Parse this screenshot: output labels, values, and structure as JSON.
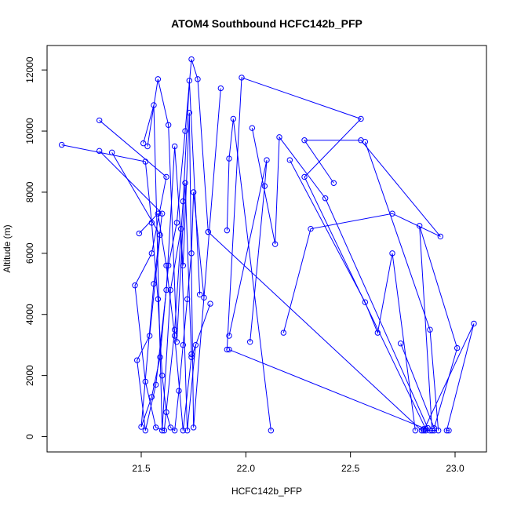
{
  "chart_data": {
    "type": "line",
    "title": "ATOM4 Southbound HCFC142b_PFP",
    "xlabel": "HCFC142b_PFP",
    "ylabel": "Altitude (m)",
    "xlim": [
      21.05,
      23.15
    ],
    "ylim": [
      -500,
      12800
    ],
    "x_ticks": [
      21.5,
      22.0,
      22.5,
      23.0
    ],
    "x_tick_labels": [
      "21.5",
      "22.0",
      "22.5",
      "23.0"
    ],
    "y_ticks": [
      0,
      2000,
      4000,
      6000,
      8000,
      10000,
      12000
    ],
    "y_tick_labels": [
      "0",
      "2000",
      "4000",
      "6000",
      "8000",
      "10000",
      "12000"
    ],
    "grid": false,
    "legend": "none",
    "series_color": "#0000ff",
    "series": [
      {
        "x": [
          21.12,
          21.52,
          21.55,
          21.58,
          21.6,
          21.62,
          21.64,
          21.66,
          21.68,
          21.7,
          21.72,
          21.74,
          21.75,
          21.8
        ],
        "y": [
          9550,
          9000,
          7000,
          4500,
          2000,
          800,
          300,
          200,
          1500,
          3000,
          4500,
          6000,
          8000,
          4550
        ]
      },
      {
        "x": [
          21.3,
          21.62,
          21.55,
          21.47,
          21.52,
          21.57,
          21.61,
          21.66,
          21.7,
          21.73,
          21.78
        ],
        "y": [
          10350,
          8500,
          6000,
          4950,
          1800,
          300,
          200,
          3500,
          7700,
          11650,
          4650
        ]
      },
      {
        "x": [
          21.3,
          21.6,
          21.56,
          21.5,
          21.55,
          21.59,
          21.63,
          21.67,
          21.71,
          21.74,
          21.77,
          21.82
        ],
        "y": [
          9350,
          7300,
          5000,
          320,
          1300,
          2600,
          5600,
          7000,
          10000,
          12350,
          11700,
          6700
        ]
      },
      {
        "x": [
          21.36,
          21.59,
          21.54,
          21.48,
          21.52,
          21.57,
          21.62,
          21.66,
          21.7,
          21.73,
          21.75,
          21.88
        ],
        "y": [
          9300,
          6600,
          3300,
          2500,
          200,
          1700,
          4800,
          9500,
          5600,
          10600,
          300,
          11400
        ]
      },
      {
        "x": [
          21.49,
          21.58,
          21.62,
          21.66,
          21.7,
          21.74,
          21.83
        ],
        "y": [
          6650,
          7300,
          5600,
          3300,
          200,
          2600,
          4350
        ]
      },
      {
        "x": [
          21.51,
          21.56,
          21.6,
          21.64,
          21.69,
          21.72,
          21.76
        ],
        "y": [
          9600,
          10850,
          200,
          4800,
          6800,
          200,
          3000
        ]
      },
      {
        "x": [
          21.53,
          21.58,
          21.63,
          21.67,
          21.71,
          21.74
        ],
        "y": [
          9500,
          11700,
          10200,
          3100,
          8300,
          2700
        ]
      },
      {
        "x": [
          21.91,
          21.92,
          21.94,
          22.12
        ],
        "y": [
          6750,
          9100,
          10400,
          200
        ]
      },
      {
        "x": [
          21.92,
          22.1,
          22.09,
          22.02
        ],
        "y": [
          3300,
          9050,
          8200,
          3100
        ]
      },
      {
        "x": [
          21.91,
          21.98,
          22.55,
          22.28,
          22.86
        ],
        "y": [
          2850,
          11750,
          10400,
          8500,
          250
        ]
      },
      {
        "x": [
          22.03,
          22.14,
          22.16,
          22.38,
          22.87
        ],
        "y": [
          10100,
          6300,
          9800,
          7800,
          280
        ]
      },
      {
        "x": [
          22.18,
          22.31,
          22.7,
          22.93,
          22.55,
          22.28,
          22.42
        ],
        "y": [
          3400,
          6800,
          7300,
          6550,
          9700,
          9700,
          8300
        ]
      },
      {
        "x": [
          22.21,
          22.57,
          22.63,
          22.7,
          22.81
        ],
        "y": [
          9050,
          4400,
          3400,
          6000,
          200
        ]
      },
      {
        "x": [
          22.57,
          22.88,
          22.92
        ],
        "y": [
          9650,
          3500,
          200
        ]
      },
      {
        "x": [
          22.74,
          22.9,
          23.01,
          22.83,
          22.89
        ],
        "y": [
          3050,
          280,
          2900,
          6900,
          200
        ]
      },
      {
        "x": [
          22.85,
          23.09,
          22.96,
          22.97
        ],
        "y": [
          200,
          3700,
          200,
          200
        ]
      },
      {
        "x": [
          21.92,
          22.88,
          22.9
        ],
        "y": [
          2850,
          200,
          200
        ]
      },
      {
        "x": [
          21.82,
          22.84,
          22.85,
          22.86
        ],
        "y": [
          6700,
          200,
          250,
          200
        ]
      }
    ]
  }
}
